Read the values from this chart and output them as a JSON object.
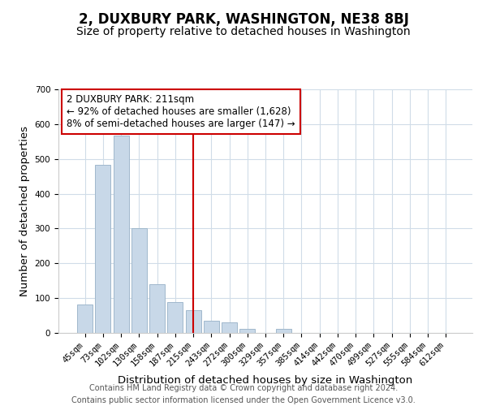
{
  "title": "2, DUXBURY PARK, WASHINGTON, NE38 8BJ",
  "subtitle": "Size of property relative to detached houses in Washington",
  "xlabel": "Distribution of detached houses by size in Washington",
  "ylabel": "Number of detached properties",
  "bar_labels": [
    "45sqm",
    "73sqm",
    "102sqm",
    "130sqm",
    "158sqm",
    "187sqm",
    "215sqm",
    "243sqm",
    "272sqm",
    "300sqm",
    "329sqm",
    "357sqm",
    "385sqm",
    "414sqm",
    "442sqm",
    "470sqm",
    "499sqm",
    "527sqm",
    "555sqm",
    "584sqm",
    "612sqm"
  ],
  "bar_values": [
    82,
    484,
    567,
    302,
    139,
    88,
    65,
    36,
    31,
    12,
    0,
    11,
    0,
    0,
    0,
    0,
    0,
    0,
    0,
    0,
    0
  ],
  "bar_color": "#c8d8e8",
  "bar_edge_color": "#a0b8cc",
  "vline_x_index": 6,
  "vline_color": "#cc0000",
  "annotation_line1": "2 DUXBURY PARK: 211sqm",
  "annotation_line2": "← 92% of detached houses are smaller (1,628)",
  "annotation_line3": "8% of semi-detached houses are larger (147) →",
  "annotation_box_color": "#ffffff",
  "annotation_box_edge": "#cc0000",
  "ylim": [
    0,
    700
  ],
  "yticks": [
    0,
    100,
    200,
    300,
    400,
    500,
    600,
    700
  ],
  "footer_line1": "Contains HM Land Registry data © Crown copyright and database right 2024.",
  "footer_line2": "Contains public sector information licensed under the Open Government Licence v3.0.",
  "title_fontsize": 12,
  "subtitle_fontsize": 10,
  "axis_label_fontsize": 9.5,
  "tick_fontsize": 7.5,
  "annotation_fontsize": 8.5,
  "footer_fontsize": 7
}
